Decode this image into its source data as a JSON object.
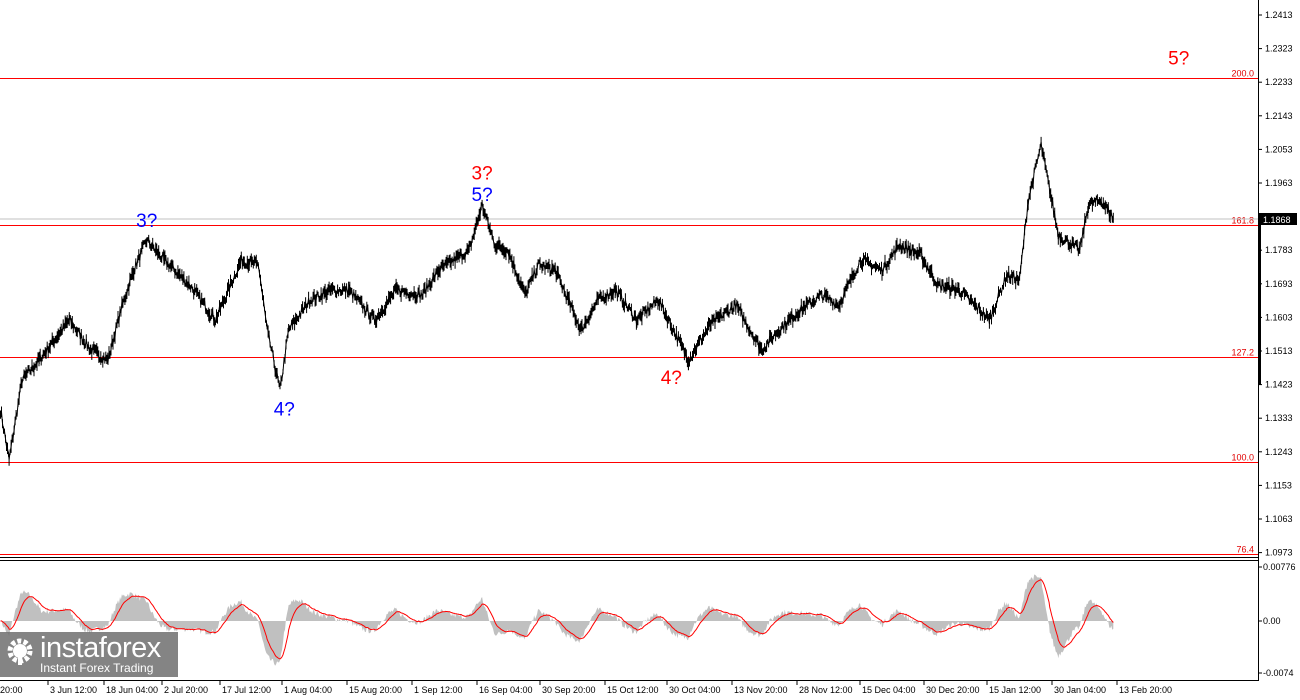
{
  "chart_data": {
    "type": "line",
    "instrument_style": "price chart with Fibonacci levels and wave labels",
    "price_axis": {
      "ticks": [
        "1.2413",
        "1.2323",
        "1.2233",
        "1.2143",
        "1.2053",
        "1.1963",
        "1.1868",
        "1.1783",
        "1.1693",
        "1.1603",
        "1.1513",
        "1.1423",
        "1.1333",
        "1.1243",
        "1.1153",
        "1.1063",
        "1.0973"
      ],
      "range": [
        1.096,
        1.245
      ]
    },
    "current_price": "1.1868",
    "time_axis": {
      "ticks": [
        "20:00",
        "3 Jun 12:00",
        "18 Jun 04:00",
        "2 Jul 20:00",
        "17 Jul 12:00",
        "1 Aug 04:00",
        "15 Aug 20:00",
        "1 Sep 12:00",
        "16 Sep 04:00",
        "30 Sep 20:00",
        "15 Oct 12:00",
        "30 Oct 04:00",
        "13 Nov 20:00",
        "28 Nov 12:00",
        "15 Dec 04:00",
        "30 Dec 20:00",
        "15 Jan 12:00",
        "30 Jan 04:00",
        "13 Feb 20:00"
      ]
    },
    "fib_levels": [
      {
        "label": "200.0",
        "price": 1.2245
      },
      {
        "label": "161.8",
        "price": 1.1851
      },
      {
        "label": "127.2",
        "price": 1.1497
      },
      {
        "label": "100.0",
        "price": 1.1216
      },
      {
        "label": "76.4",
        "price": 1.097
      }
    ],
    "wave_labels": [
      {
        "text": "3?",
        "color": "#0000ff",
        "date": "2025-07-01",
        "price": 1.1845
      },
      {
        "text": "4?",
        "color": "#0000ff",
        "date": "2025-08-02",
        "price": 1.134
      },
      {
        "text": "5?",
        "color": "#0000ff",
        "date": "2025-09-17",
        "price": 1.1915
      },
      {
        "text": "3?",
        "color": "#ff0000",
        "date": "2025-09-17",
        "price": 1.1972
      },
      {
        "text": "4?",
        "color": "#ff0000",
        "date": "2025-10-31",
        "price": 1.1425
      },
      {
        "text": "5?",
        "color": "#ff0000",
        "date": "2026-02-26",
        "price": 1.228
      }
    ],
    "series": [
      {
        "points": [
          [
            "2025-05-28",
            1.1355
          ],
          [
            "2025-05-30",
            1.1221
          ],
          [
            "2025-06-02",
            1.1435
          ],
          [
            "2025-06-06",
            1.1489
          ],
          [
            "2025-06-13",
            1.1596
          ],
          [
            "2025-06-18",
            1.1516
          ],
          [
            "2025-06-22",
            1.1489
          ],
          [
            "2025-06-25",
            1.1623
          ],
          [
            "2025-06-28",
            1.173
          ],
          [
            "2025-07-01",
            1.181
          ],
          [
            "2025-07-05",
            1.1757
          ],
          [
            "2025-07-11",
            1.169
          ],
          [
            "2025-07-17",
            1.1596
          ],
          [
            "2025-07-23",
            1.1757
          ],
          [
            "2025-07-27",
            1.1743
          ],
          [
            "2025-07-29",
            1.1569
          ],
          [
            "2025-08-01",
            1.1408
          ],
          [
            "2025-08-03",
            1.1569
          ],
          [
            "2025-08-08",
            1.165
          ],
          [
            "2025-08-13",
            1.1676
          ],
          [
            "2025-08-17",
            1.1676
          ],
          [
            "2025-08-23",
            1.1596
          ],
          [
            "2025-08-28",
            1.1676
          ],
          [
            "2025-09-03",
            1.1663
          ],
          [
            "2025-09-07",
            1.173
          ],
          [
            "2025-09-14",
            1.1783
          ],
          [
            "2025-09-17",
            1.1904
          ],
          [
            "2025-09-20",
            1.1797
          ],
          [
            "2025-09-23",
            1.1783
          ],
          [
            "2025-09-27",
            1.1663
          ],
          [
            "2025-09-30",
            1.1743
          ],
          [
            "2025-10-04",
            1.173
          ],
          [
            "2025-10-10",
            1.1569
          ],
          [
            "2025-10-14",
            1.165
          ],
          [
            "2025-10-18",
            1.1676
          ],
          [
            "2025-10-23",
            1.1596
          ],
          [
            "2025-10-28",
            1.165
          ],
          [
            "2025-11-04",
            1.1489
          ],
          [
            "2025-11-09",
            1.1583
          ],
          [
            "2025-11-15",
            1.1636
          ],
          [
            "2025-11-21",
            1.1516
          ],
          [
            "2025-11-25",
            1.1569
          ],
          [
            "2025-11-30",
            1.1623
          ],
          [
            "2025-12-05",
            1.1663
          ],
          [
            "2025-12-09",
            1.1636
          ],
          [
            "2025-12-14",
            1.1757
          ],
          [
            "2025-12-19",
            1.173
          ],
          [
            "2025-12-23",
            1.1797
          ],
          [
            "2025-12-28",
            1.177
          ],
          [
            "2026-01-01",
            1.169
          ],
          [
            "2026-01-06",
            1.1676
          ],
          [
            "2026-01-13",
            1.1596
          ],
          [
            "2026-01-17",
            1.1716
          ],
          [
            "2026-01-20",
            1.1703
          ],
          [
            "2026-01-22",
            1.1917
          ],
          [
            "2026-01-25",
            1.2065
          ],
          [
            "2026-01-27",
            1.1944
          ],
          [
            "2026-01-29",
            1.1824
          ],
          [
            "2026-02-03",
            1.1783
          ],
          [
            "2026-02-05",
            1.1904
          ],
          [
            "2026-02-08",
            1.1917
          ],
          [
            "2026-02-11",
            1.1864
          ]
        ]
      }
    ],
    "oscillator": {
      "ticks": [
        "0.00776",
        "0.00",
        "-0.0074"
      ],
      "range": [
        -0.0074,
        0.00776
      ],
      "histogram_color": "#c0c0c0",
      "signal_color": "#ff0000"
    }
  },
  "colors": {
    "fib": "#ff0000",
    "price": "#000000",
    "grid_current": "#c0c0c0"
  },
  "logo": {
    "brand": "instaforex",
    "tagline": "Instant Forex Trading"
  }
}
